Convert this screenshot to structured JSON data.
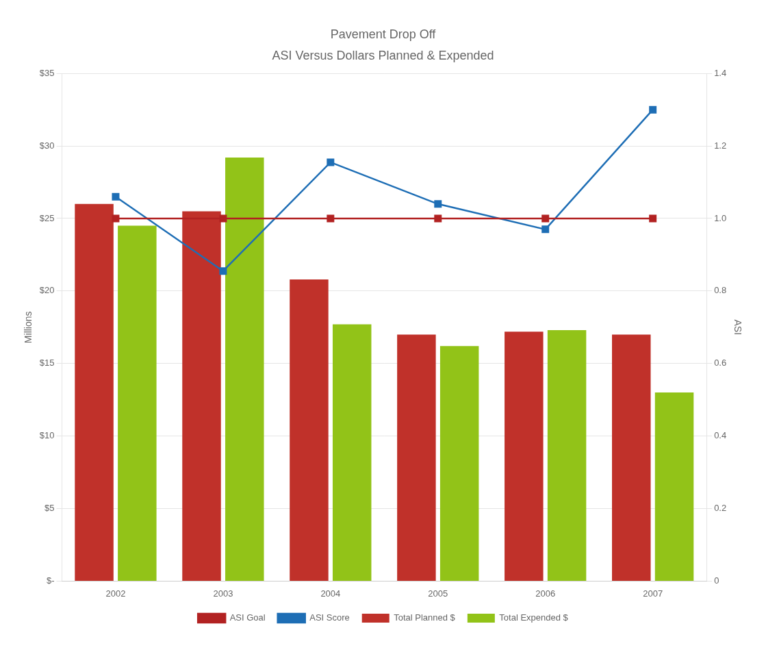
{
  "chart_data": {
    "type": "bar",
    "title": "Pavement Drop Off",
    "subtitle": "ASI Versus Dollars Planned & Expended",
    "categories": [
      "2002",
      "2003",
      "2004",
      "2005",
      "2006",
      "2007"
    ],
    "series": [
      {
        "name": "Total Planned $",
        "color": "#c0312a",
        "values": [
          26.0,
          25.5,
          20.8,
          17.0,
          17.2,
          17.0
        ]
      },
      {
        "name": "Total Expended $",
        "color": "#92c318",
        "values": [
          24.5,
          29.2,
          17.7,
          16.2,
          17.3,
          13.0
        ]
      },
      {
        "name": "ASI Goal",
        "type": "line",
        "axis": "y2",
        "color": "#b22222",
        "marker": "square",
        "values": [
          1.0,
          1.0,
          1.0,
          1.0,
          1.0,
          1.0
        ]
      },
      {
        "name": "ASI Score",
        "type": "line",
        "axis": "y2",
        "color": "#1e6eb5",
        "marker": "square",
        "values": [
          1.06,
          0.855,
          1.155,
          1.04,
          0.97,
          1.3
        ]
      }
    ],
    "ylabel": "Millions",
    "y2label": "ASI",
    "ylim": [
      0,
      35
    ],
    "yticks": [
      {
        "value": 0,
        "label": "$-"
      },
      {
        "value": 5,
        "label": "$5"
      },
      {
        "value": 10,
        "label": "$10"
      },
      {
        "value": 15,
        "label": "$15"
      },
      {
        "value": 20,
        "label": "$20"
      },
      {
        "value": 25,
        "label": "$25"
      },
      {
        "value": 30,
        "label": "$30"
      },
      {
        "value": 35,
        "label": "$35"
      }
    ],
    "y2lim": [
      0,
      1.4
    ],
    "y2ticks": [
      0,
      0.2,
      0.4,
      0.6,
      0.8,
      {
        "value": 1.0,
        "label": "1.0"
      },
      1.2,
      1.4
    ],
    "grid": true,
    "legend": "bottom"
  }
}
